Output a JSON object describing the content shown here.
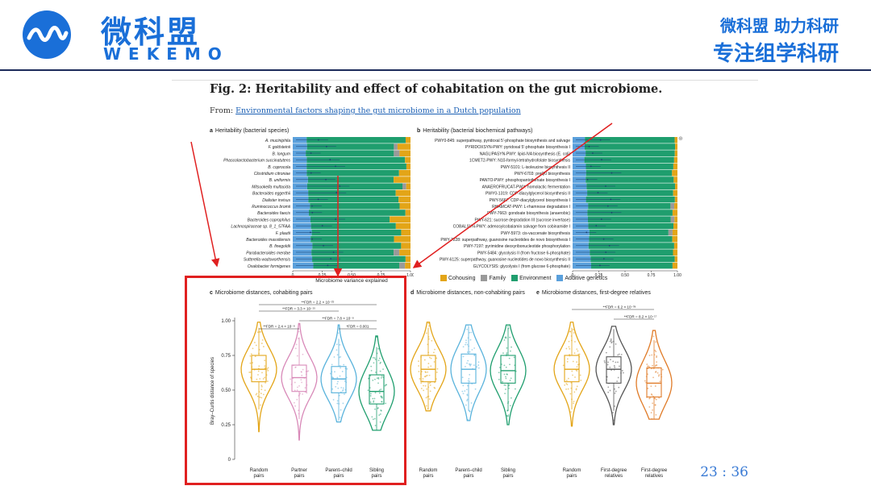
{
  "header": {
    "logo_cn": "微科盟",
    "logo_en": "WEKEMO",
    "slogan_line1": "微科盟 助力科研",
    "slogan_line2": "专注组学科研",
    "brand_color": "#1a6fd8"
  },
  "figure": {
    "title": "Fig. 2: Heritability and effect of cohabitation on the gut microbiome.",
    "from_prefix": "From: ",
    "from_link": "Environmental factors shaping the gut microbiome in a Dutch population",
    "panel_a": {
      "label": "a",
      "title": "Heritability (bacterial species)",
      "species": [
        "A. muciniphila",
        "F. goldsteinii",
        "B. longum",
        "Phascolarctobacterium succinatutens",
        "B. coprocola",
        "Clostridium citroniae",
        "B. uniformis",
        "Mitsuokella multacida",
        "Bacteroides eggerthii",
        "Dialister invisus",
        "Ruminococcus bromii",
        "Bacteroides faecis",
        "Bacteroides coprophilus",
        "Lachnospiraceae sp. 8_1_57FAA",
        "F. plautii",
        "Bacteroides massiliensis",
        "B. finegoldii",
        "Parabacteroides merdae",
        "Sutterella wadsworthensis",
        "Oxalobacter formigenes"
      ],
      "xlabel": "Microbiome variance explained",
      "ticks": [
        "0",
        "0.25",
        "0.50",
        "0.75",
        "1.00"
      ]
    },
    "panel_b": {
      "label": "b",
      "title": "Heritability (bacterial biochemical pathways)",
      "pathways": [
        "PWY0-845: superpathway, pyridoxal 5'-phosphate biosynthesis and salvage",
        "PYRIDOXSYN-PWY: pyridoxal 5'-phosphate biosynthesis I",
        "NAGLIPASYN-PWY: lipid-IVA biosynthesis (E. coli)",
        "1CMET2-PWY: N10-formyl-tetrahydrofolate biosynthesis",
        "PWY-5101: L-isoleucine biosynthesis II",
        "PWY-6703: preQ0 biosynthesis",
        "PANTO-PWY: phosphopantothenate biosynthesis I",
        "ANAEROFRUCAT-PWY: homolactic fermentation",
        "PWY0-1319: CDP-diacylglycerol biosynthesis II",
        "PWY-5667: CDP-diacylglycerol biosynthesis I",
        "RHAMCAT-PWY: L-rhamnose degradation I",
        "PWY-7663: gondoate biosynthesis (anaerobic)",
        "PWY-621: sucrose degradation III (sucrose invertase)",
        "COBALSYN-PWY: adenosylcobalamin salvage from cobinamide I",
        "PWY-5973: cis-vaccenate biosynthesis",
        "PWY-7228: superpathway, guanosine nucleotides de novo biosynthesis I",
        "PWY-7197: pyrimidine deoxyribonucleotide phosphorylation",
        "PWY-5484: glycolysis II (from fructose 6-phosphate)",
        "PWY-6125: superpathway, guanosine nucleotides de novo biosynthesis II",
        "GLYCOLYSIS: glycolysis I (from glucose 6-phosphate)"
      ],
      "ticks": [
        "0",
        "0.25",
        "0.50",
        "0.75",
        "1.00"
      ]
    },
    "legend": [
      {
        "label": "Cohousing",
        "color": "#e3a518"
      },
      {
        "label": "Family",
        "color": "#9a9a9a"
      },
      {
        "label": "Environment",
        "color": "#1f9e6e"
      },
      {
        "label": "Additive genetics",
        "color": "#5aa0dc"
      }
    ],
    "panel_c": {
      "label": "c",
      "title": "Microbiome distances, cohabiting pairs",
      "ylabel": "Bray–Curtis distance of species",
      "yticks": [
        "0",
        "0.25",
        "0.50",
        "0.75",
        "1.00"
      ],
      "groups": [
        "Random pairs",
        "Partner pairs",
        "Parent–child pairs",
        "Sibling pairs"
      ],
      "fdr": [
        "**FDR = 2.2 × 10⁻²⁵",
        "**FDR = 3.3 × 10⁻¹⁵",
        "**FDR = 7.8 × 10⁻⁸",
        "**FDR = 2.4 × 10⁻⁸",
        "*FDR = 0.001"
      ]
    },
    "panel_d": {
      "label": "d",
      "title": "Microbiome distances, non-cohabiting pairs",
      "groups": [
        "Random pairs",
        "Parent–child pairs",
        "Sibling pairs"
      ]
    },
    "panel_e": {
      "label": "e",
      "title": "Microbiome distances, first-degree relatives",
      "groups": [
        "Random pairs",
        "First-degree relatives",
        "First-degree relatives"
      ],
      "fdr": [
        "**FDR = 6.2 × 10⁻³⁹",
        "**FDR = 8.2 × 10⁻¹⁷"
      ]
    }
  },
  "colors": {
    "random": "#e3a518",
    "partner": "#d889b8",
    "parent_child": "#5ab3dc",
    "sibling": "#1f9e6e",
    "first_degree_gray": "#555555",
    "first_degree_orange": "#e07b28",
    "highlight": "#e02020"
  },
  "page_number": "23 : 36"
}
